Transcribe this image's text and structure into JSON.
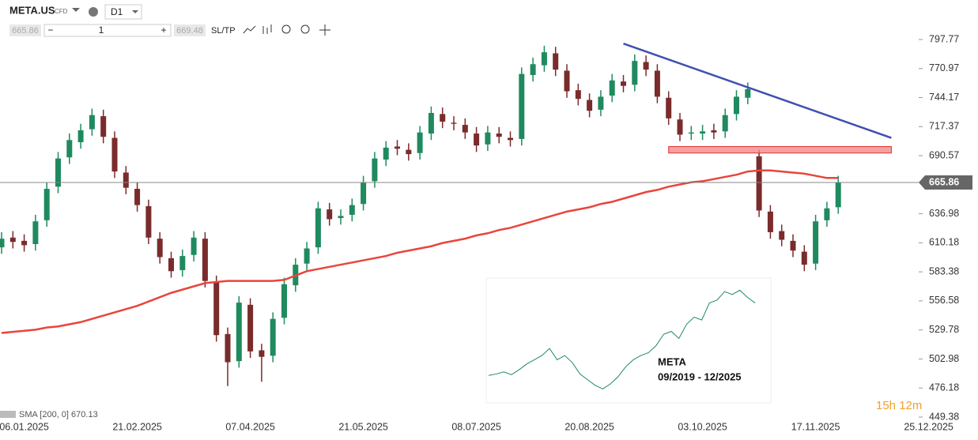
{
  "toolbar": {
    "symbol": "META.US",
    "instrument": "CFD",
    "timeframe": "D1",
    "sell_price": "665.86",
    "minus": "−",
    "volume": "1",
    "plus": "+",
    "buy_price": "669.48",
    "sltp": "SL/TP"
  },
  "chart_data": {
    "type": "candlestick",
    "categories": [
      null,
      null,
      "06.01.2025",
      null,
      null,
      null,
      null,
      null,
      null,
      null,
      null,
      null,
      "21.02.2025",
      null,
      null,
      null,
      null,
      null,
      null,
      null,
      null,
      null,
      "07.04.2025",
      null,
      null,
      null,
      null,
      null,
      null,
      null,
      null,
      null,
      "21.05.2025",
      null,
      null,
      null,
      null,
      null,
      null,
      null,
      null,
      null,
      "08.07.2025",
      null,
      null,
      null,
      null,
      null,
      null,
      null,
      null,
      null,
      "20.08.2025",
      null,
      null,
      null,
      null,
      null,
      null,
      null,
      null,
      null,
      "03.10.2025",
      null,
      null,
      null,
      null,
      null,
      null,
      null,
      null,
      null,
      "17.11.2025",
      null,
      null,
      null,
      null,
      null,
      null,
      null,
      null,
      null,
      "25.12.2025"
    ],
    "open": [
      606,
      615,
      612,
      609,
      631,
      662,
      689,
      703,
      715,
      727,
      707,
      675,
      660,
      644,
      614,
      596,
      585,
      599,
      614,
      574,
      526,
      501,
      553,
      511,
      506,
      541,
      571,
      591,
      606,
      641,
      633,
      636,
      646,
      667,
      687,
      699,
      696,
      693,
      711,
      729,
      721,
      719,
      711,
      701,
      711,
      707,
      706,
      765,
      774,
      785,
      769,
      751,
      742,
      733,
      746,
      759,
      756,
      777,
      769,
      744,
      724,
      711,
      711,
      714,
      713,
      729,
      744,
      690,
      639,
      621,
      612,
      602,
      591,
      631,
      643,
      null,
      null,
      null,
      null,
      null,
      null,
      null,
      null
    ],
    "high": [
      620,
      621,
      618,
      636,
      666,
      694,
      711,
      720,
      734,
      733,
      713,
      681,
      666,
      650,
      620,
      602,
      604,
      621,
      620,
      580,
      532,
      561,
      559,
      517,
      546,
      578,
      596,
      611,
      648,
      647,
      641,
      651,
      672,
      694,
      704,
      705,
      702,
      718,
      736,
      735,
      727,
      725,
      717,
      718,
      717,
      713,
      772,
      781,
      792,
      791,
      775,
      757,
      748,
      751,
      766,
      765,
      784,
      783,
      775,
      750,
      730,
      718,
      719,
      720,
      734,
      751,
      758,
      696,
      645,
      627,
      618,
      608,
      636,
      648,
      672,
      null,
      null,
      null,
      null,
      null,
      null,
      null,
      null
    ],
    "low": [
      600,
      605,
      602,
      603,
      625,
      656,
      683,
      697,
      709,
      702,
      670,
      655,
      639,
      609,
      591,
      578,
      579,
      593,
      569,
      519,
      478,
      495,
      504,
      482,
      500,
      535,
      565,
      585,
      600,
      626,
      627,
      630,
      640,
      661,
      681,
      691,
      686,
      687,
      705,
      716,
      714,
      706,
      694,
      695,
      702,
      699,
      700,
      759,
      768,
      764,
      744,
      737,
      726,
      727,
      740,
      749,
      750,
      764,
      739,
      719,
      704,
      705,
      705,
      706,
      707,
      723,
      738,
      634,
      614,
      607,
      597,
      584,
      585,
      625,
      637,
      null,
      null,
      null,
      null,
      null,
      null,
      null,
      null
    ],
    "close": [
      614,
      611,
      608,
      630,
      660,
      688,
      705,
      714,
      728,
      708,
      676,
      661,
      645,
      615,
      597,
      584,
      598,
      615,
      575,
      525,
      500,
      555,
      510,
      505,
      540,
      572,
      590,
      605,
      642,
      632,
      635,
      645,
      666,
      688,
      698,
      697,
      692,
      712,
      730,
      722,
      720,
      712,
      700,
      712,
      708,
      705,
      766,
      775,
      786,
      770,
      750,
      743,
      732,
      745,
      760,
      755,
      778,
      770,
      745,
      725,
      710,
      712,
      713,
      712,
      728,
      745,
      752,
      640,
      620,
      613,
      603,
      590,
      630,
      642,
      666,
      null,
      null,
      null,
      null,
      null,
      null,
      null,
      null
    ],
    "up_color": "#1f8a5e",
    "down_color": "#7a2b2b",
    "sma": {
      "name": "SMA [200, 0] 670.13",
      "color": "#e8453c",
      "values": [
        527,
        528,
        529,
        530,
        532,
        533,
        535,
        537,
        540,
        543,
        546,
        549,
        552,
        556,
        560,
        564,
        567,
        570,
        573,
        574,
        575,
        575,
        575,
        575,
        575,
        576,
        580,
        584,
        586,
        588,
        590,
        592,
        594,
        596,
        598,
        601,
        603,
        605,
        607,
        610,
        612,
        614,
        617,
        619,
        622,
        624,
        627,
        630,
        633,
        636,
        639,
        641,
        643,
        646,
        648,
        651,
        654,
        657,
        659,
        662,
        664,
        666,
        667,
        669,
        671,
        673,
        676,
        677,
        677,
        676,
        675,
        674,
        672,
        670,
        670,
        null,
        null,
        null,
        null,
        null,
        null,
        null,
        null
      ]
    },
    "trendline": {
      "x": [
        55,
        78.7
      ],
      "y": [
        794,
        707
      ],
      "color": "#3f4fb0"
    },
    "zone": {
      "x": [
        59,
        78.7
      ],
      "y": [
        693,
        699
      ],
      "color": "#f08a8a"
    },
    "last_price": {
      "value": 665.86,
      "label": "665.86"
    },
    "ylim": [
      449.38,
      797.77
    ],
    "yticks": [
      449.38,
      476.18,
      502.98,
      529.78,
      556.58,
      583.38,
      610.18,
      636.98,
      690.57,
      717.37,
      744.17,
      770.97,
      797.77
    ],
    "timer": "15h 12m",
    "inset": {
      "title": "META",
      "subtitle": "09/2019 - 12/2025",
      "ylim": [
        80,
        820
      ],
      "values": [
        190,
        200,
        215,
        195,
        230,
        270,
        300,
        330,
        380,
        300,
        330,
        280,
        200,
        160,
        120,
        95,
        130,
        180,
        250,
        300,
        330,
        350,
        400,
        480,
        500,
        450,
        550,
        600,
        580,
        700,
        720,
        780,
        760,
        790,
        740,
        700
      ]
    }
  }
}
